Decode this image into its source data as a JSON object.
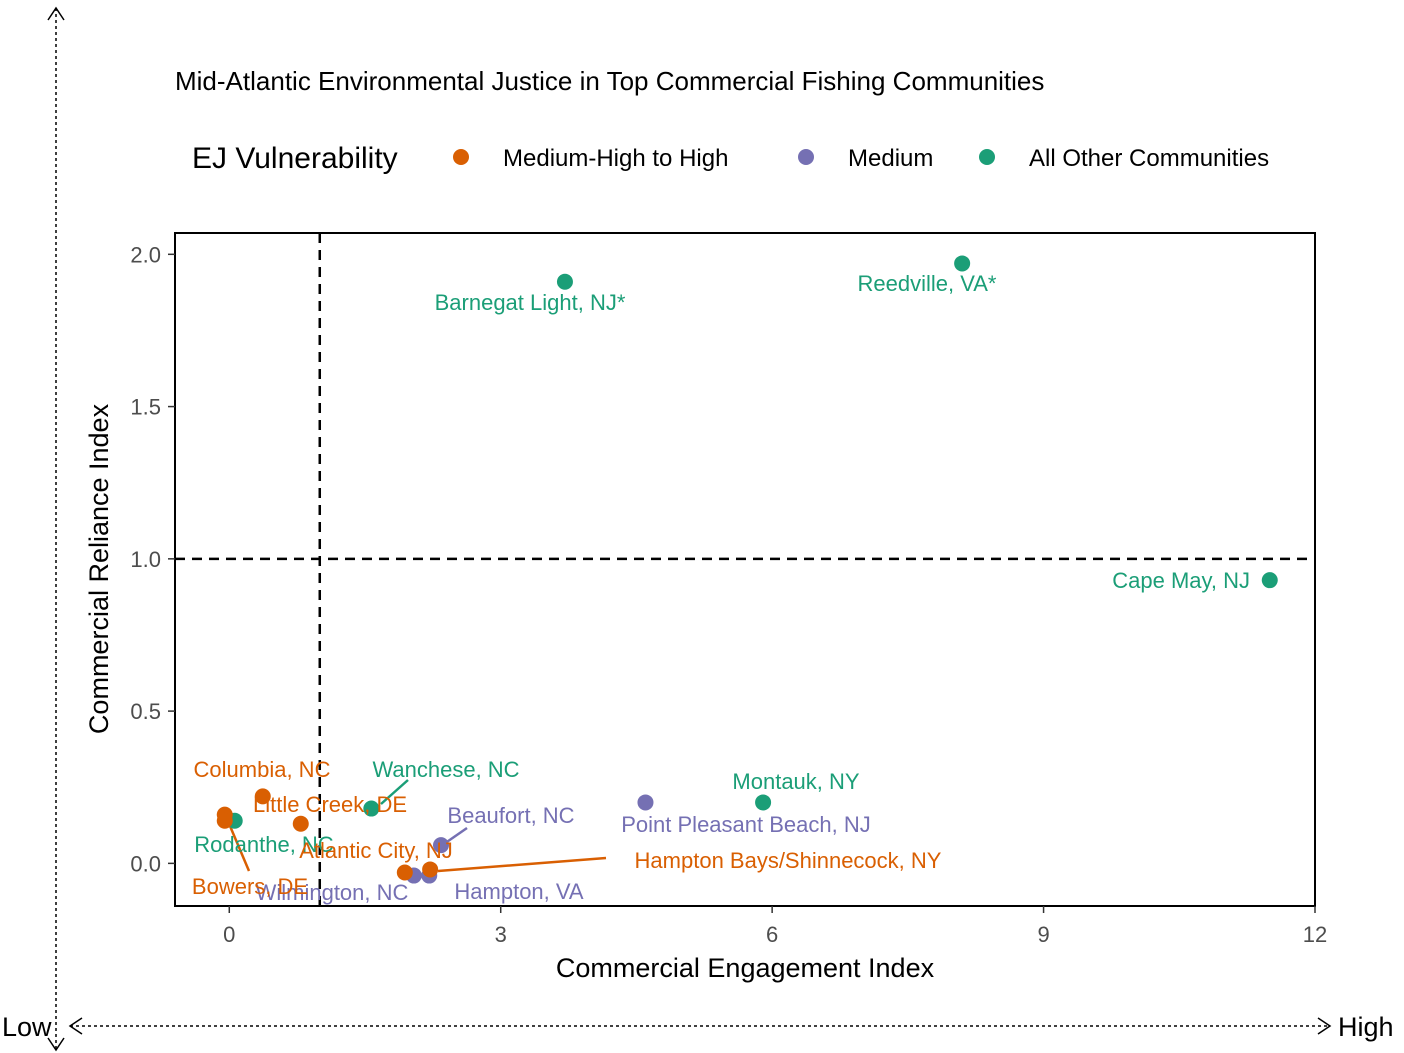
{
  "chart_data": {
    "type": "scatter",
    "title": "Mid-Atlantic Environmental Justice in Top Commercial Fishing Communities",
    "xlabel": "Commercial Engagement Index",
    "ylabel": "Commercial Reliance Index",
    "xlim": [
      -0.6,
      12
    ],
    "ylim": [
      -0.14,
      2.07
    ],
    "x_ticks": [
      0,
      3,
      6,
      9,
      12
    ],
    "x_tick_labels": [
      "0",
      "3",
      "6",
      "9",
      "12"
    ],
    "y_ticks": [
      0.0,
      0.5,
      1.0,
      1.5,
      2.0
    ],
    "y_tick_labels": [
      "0.0",
      "0.5",
      "1.0",
      "1.5",
      "2.0"
    ],
    "grid": false,
    "reference_lines": {
      "x": 1,
      "y": 1,
      "style": "dashed"
    },
    "legend": {
      "title": "EJ Vulnerability",
      "position": "top",
      "entries": [
        {
          "label": "Medium-High to High",
          "color": "#d95f02"
        },
        {
          "label": "Medium",
          "color": "#7570b3"
        },
        {
          "label": "All Other Communities",
          "color": "#1b9e77"
        }
      ]
    },
    "series": [
      {
        "name": "Medium-High to High",
        "color": "#d95f02",
        "points": [
          {
            "label": "Columbia, NC",
            "x": 0.37,
            "y": 0.22
          },
          {
            "label": "Little Creek, DE",
            "x": 0.79,
            "y": 0.13
          },
          {
            "label": "Bowers, DE",
            "x": -0.05,
            "y": 0.16
          },
          {
            "label": "Atlantic City, NJ",
            "x": 1.94,
            "y": -0.03
          },
          {
            "label": "Hampton Bays/Shinnecock, NY",
            "x": 2.22,
            "y": -0.02
          },
          {
            "label": "",
            "x": -0.05,
            "y": 0.14
          }
        ]
      },
      {
        "name": "Medium",
        "color": "#7570b3",
        "points": [
          {
            "label": "Point Pleasant Beach, NJ",
            "x": 4.6,
            "y": 0.2
          },
          {
            "label": "Beaufort, NC",
            "x": 2.34,
            "y": 0.06
          },
          {
            "label": "Wilmington, NC",
            "x": 2.04,
            "y": -0.04
          },
          {
            "label": "Hampton, VA",
            "x": 2.21,
            "y": -0.04
          }
        ]
      },
      {
        "name": "All Other Communities",
        "color": "#1b9e77",
        "points": [
          {
            "label": "Barnegat Light, NJ*",
            "x": 3.71,
            "y": 1.91
          },
          {
            "label": "Reedville, VA*",
            "x": 8.1,
            "y": 1.97
          },
          {
            "label": "Cape May, NJ",
            "x": 11.5,
            "y": 0.93
          },
          {
            "label": "Montauk, NY",
            "x": 5.9,
            "y": 0.2
          },
          {
            "label": "Wanchese, NC",
            "x": 1.57,
            "y": 0.18
          },
          {
            "label": "Rodanthe, NC",
            "x": 0.06,
            "y": 0.14
          }
        ]
      }
    ]
  },
  "outer_axes": {
    "low_label": "Low",
    "high_label": "High"
  }
}
